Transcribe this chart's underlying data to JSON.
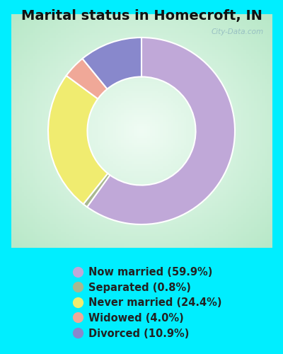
{
  "title": "Marital status in Homecroft, IN",
  "slices": [
    {
      "label": "Now married (59.9%)",
      "value": 59.9,
      "color": "#C0A8D8"
    },
    {
      "label": "Separated (0.8%)",
      "value": 0.8,
      "color": "#A8B890"
    },
    {
      "label": "Never married (24.4%)",
      "value": 24.4,
      "color": "#F0EC70"
    },
    {
      "label": "Widowed (4.0%)",
      "value": 4.0,
      "color": "#F0A898"
    },
    {
      "label": "Divorced (10.9%)",
      "value": 10.9,
      "color": "#8888CC"
    }
  ],
  "background_outer": "#00EEFF",
  "background_inner_corner": "#B0E8C8",
  "background_inner_center": "#E8F8F0",
  "donut_width": 0.42,
  "title_fontsize": 14,
  "legend_fontsize": 10.5,
  "watermark": "City-Data.com"
}
